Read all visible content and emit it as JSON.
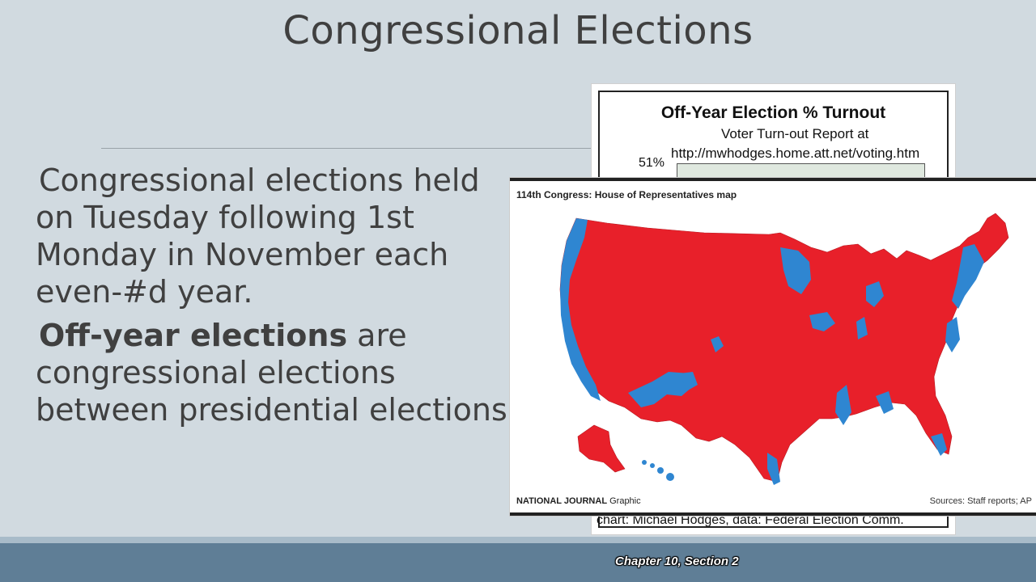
{
  "slide": {
    "title": "Congressional Elections",
    "paragraph1": "Congressional elections held on Tuesday following 1st Monday in November each even-#d year.",
    "paragraph2_bold": "Off-year elections",
    "paragraph2_rest": " are congressional elections between presidential elections.",
    "footer": "Chapter 10, Section 2"
  },
  "turnout_image": {
    "title": "Off-Year Election % Turnout",
    "subtitle_line1": "Voter Turn-out Report at",
    "subtitle_line2": "http://mwhodges.home.att.net/voting.htm",
    "y_tick_top": "51%",
    "credit": "chart: Michael Hodges,  data: Federal Election Comm."
  },
  "map_image": {
    "heading": "114th Congress: House of Representatives map",
    "brand_bold": "NATIONAL JOURNAL",
    "brand_rest": " Graphic",
    "sources": "Sources: Staff reports; AP",
    "colors": {
      "republican": "#e8202a",
      "democrat": "#2f86d1"
    }
  }
}
